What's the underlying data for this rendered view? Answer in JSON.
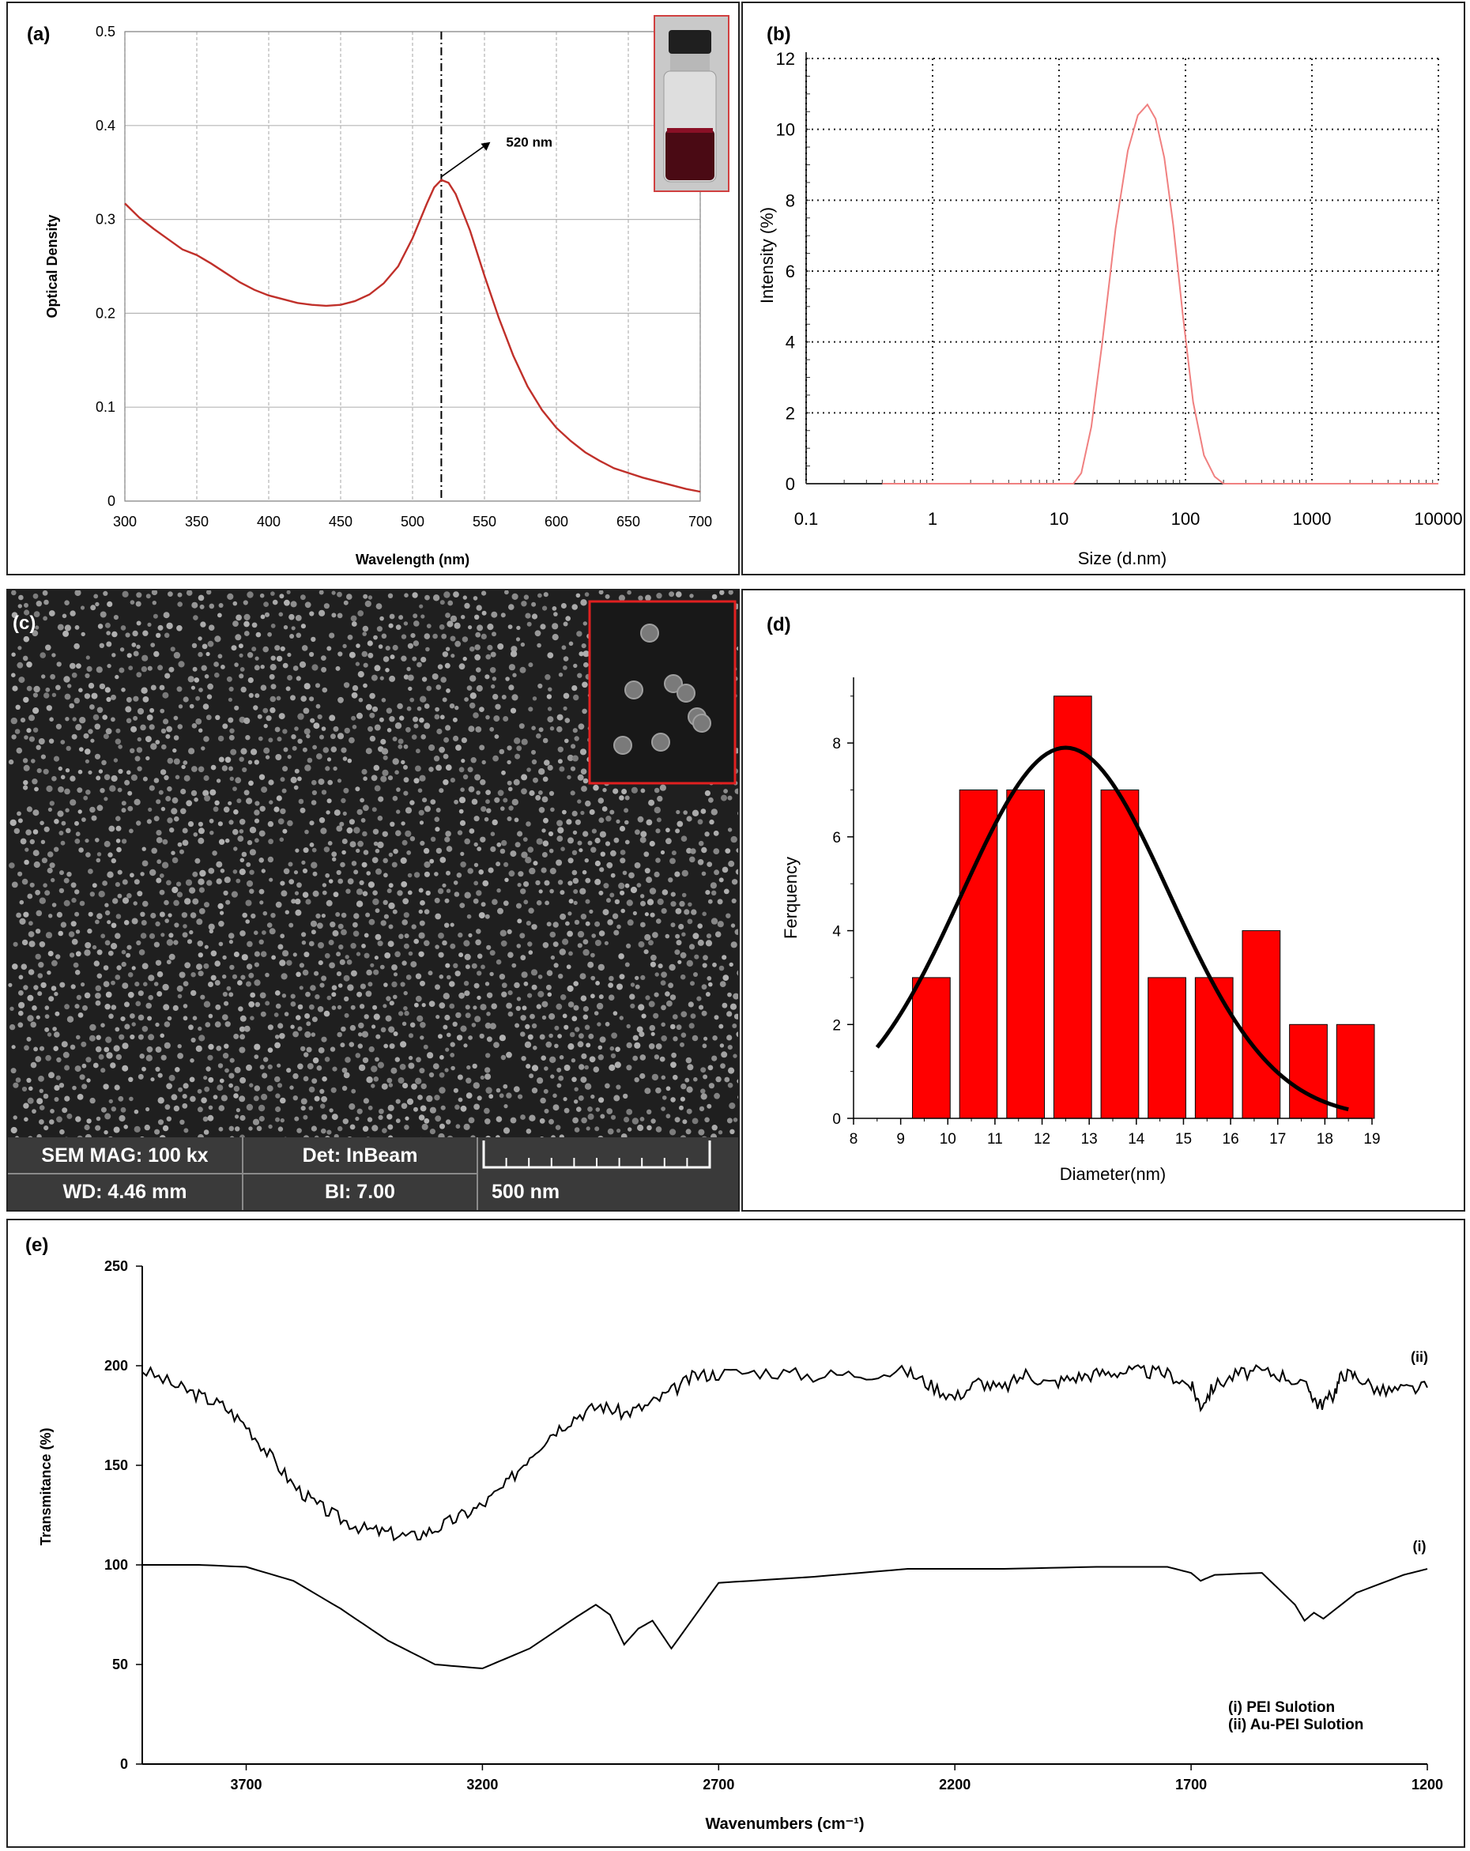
{
  "panels": {
    "a": {
      "label": "(a)",
      "chart_data": {
        "type": "line",
        "xlabel": "Wavelength (nm)",
        "ylabel": "Optical Density",
        "xlim": [
          300,
          700
        ],
        "ylim": [
          0,
          0.5
        ],
        "xticks": [
          300,
          350,
          400,
          450,
          500,
          550,
          600,
          650,
          700
        ],
        "yticks": [
          0,
          0.1,
          0.2,
          0.3,
          0.4,
          0.5
        ],
        "ytick_labels": [
          "0",
          "0.1",
          "0.2",
          "0.3",
          "0.4",
          "0.5"
        ],
        "grid": true,
        "series": [
          {
            "color": "#c0302a",
            "x": [
              300,
              310,
              320,
              330,
              340,
              350,
              360,
              370,
              380,
              390,
              400,
              410,
              420,
              430,
              440,
              450,
              460,
              470,
              480,
              490,
              500,
              510,
              515,
              520,
              525,
              530,
              540,
              550,
              560,
              570,
              580,
              590,
              600,
              610,
              620,
              630,
              640,
              650,
              660,
              670,
              680,
              690,
              700
            ],
            "y": [
              0.317,
              0.302,
              0.29,
              0.279,
              0.268,
              0.262,
              0.253,
              0.243,
              0.233,
              0.225,
              0.219,
              0.215,
              0.211,
              0.209,
              0.208,
              0.209,
              0.213,
              0.22,
              0.232,
              0.25,
              0.28,
              0.317,
              0.334,
              0.342,
              0.339,
              0.327,
              0.288,
              0.24,
              0.195,
              0.155,
              0.122,
              0.097,
              0.078,
              0.064,
              0.052,
              0.043,
              0.035,
              0.03,
              0.025,
              0.021,
              0.017,
              0.013,
              0.01
            ]
          }
        ],
        "marker_x": 520,
        "annotation": "520 nm",
        "inset": "vial-photo"
      }
    },
    "b": {
      "label": "(b)",
      "chart_data": {
        "type": "line",
        "xscale": "log",
        "xlabel": "Size (d.nm)",
        "ylabel": "Intensity  (%)",
        "xlim": [
          0.1,
          10000
        ],
        "ylim": [
          0,
          12
        ],
        "xticks": [
          0.1,
          1,
          10,
          100,
          1000,
          10000
        ],
        "xtick_labels": [
          "0.1",
          "1",
          "10",
          "100",
          "1000",
          "10000"
        ],
        "yticks": [
          0,
          2,
          4,
          6,
          8,
          10,
          12
        ],
        "ytick_labels": [
          "0",
          "2",
          "4",
          "6",
          "8",
          "10",
          "12"
        ],
        "grid": true,
        "series": [
          {
            "color": "#f08080",
            "x": [
              0.4,
              13,
              15,
              18,
              22,
              28,
              35,
              42,
              50,
              58,
              68,
              80,
              95,
              115,
              140,
              170,
              200,
              10000
            ],
            "y": [
              0,
              0,
              0.3,
              1.6,
              4.0,
              7.2,
              9.4,
              10.4,
              10.7,
              10.3,
              9.2,
              7.3,
              4.8,
              2.3,
              0.8,
              0.2,
              0,
              0
            ]
          }
        ]
      }
    },
    "c": {
      "label": "(c)",
      "sem": {
        "mag": "SEM MAG: 100 kx",
        "det": "Det: InBeam",
        "wd": "WD: 4.46 mm",
        "bi": "BI: 7.00",
        "scale": "500 nm"
      }
    },
    "d": {
      "label": "(d)",
      "chart_data": {
        "type": "bar",
        "xlabel": "Diameter(nm)",
        "ylabel": "Ferquency",
        "xlim": [
          8,
          19
        ],
        "ylim": [
          0,
          9.4
        ],
        "xticks": [
          8,
          9,
          10,
          11,
          12,
          13,
          14,
          15,
          16,
          17,
          18,
          19
        ],
        "yticks": [
          0,
          2,
          4,
          6,
          8
        ],
        "bar_width": 0.8,
        "bar_color": "#ff0000",
        "bins": [
          {
            "center": 9.65,
            "value": 3
          },
          {
            "center": 10.65,
            "value": 7
          },
          {
            "center": 11.65,
            "value": 7
          },
          {
            "center": 12.65,
            "value": 9
          },
          {
            "center": 13.65,
            "value": 7
          },
          {
            "center": 14.65,
            "value": 3
          },
          {
            "center": 15.65,
            "value": 3
          },
          {
            "center": 16.65,
            "value": 4
          },
          {
            "center": 17.65,
            "value": 2
          },
          {
            "center": 18.65,
            "value": 2
          }
        ],
        "fit": {
          "type": "gaussian",
          "mean": 12.5,
          "sigma": 2.2,
          "amplitude": 7.9,
          "x_range": [
            8.5,
            18.5
          ]
        }
      }
    },
    "e": {
      "label": "(e)",
      "chart_data": {
        "type": "line",
        "xlabel": "Wavenumbers (cm⁻¹)",
        "ylabel": "Transmitance (%)",
        "xlim": [
          3920,
          1200
        ],
        "ylim": [
          0,
          250
        ],
        "xticks": [
          3700,
          3200,
          2700,
          2200,
          1700,
          1200
        ],
        "yticks": [
          0,
          50,
          100,
          150,
          200,
          250
        ],
        "legend": [
          "(i) PEI Sulotion",
          "(ii) Au-PEI Sulotion"
        ],
        "series": [
          {
            "name": "(i)",
            "x": [
              3920,
              3800,
              3700,
              3600,
              3500,
              3400,
              3300,
              3200,
              3100,
              3000,
              2960,
              2930,
              2900,
              2870,
              2840,
              2800,
              2700,
              2500,
              2300,
              2100,
              1900,
              1750,
              1700,
              1680,
              1650,
              1550,
              1480,
              1460,
              1440,
              1420,
              1350,
              1250,
              1200
            ],
            "y": [
              100,
              100,
              99,
              92,
              78,
              62,
              50,
              48,
              58,
              74,
              80,
              75,
              60,
              68,
              72,
              58,
              91,
              94,
              98,
              98,
              99,
              99,
              96,
              92,
              95,
              96,
              80,
              72,
              76,
              73,
              86,
              95,
              98
            ]
          },
          {
            "name": "(ii)",
            "x": [
              3920,
              3850,
              3800,
              3750,
              3700,
              3650,
              3600,
              3550,
              3500,
              3450,
              3400,
              3350,
              3300,
              3250,
              3200,
              3150,
              3100,
              3050,
              3000,
              2950,
              2900,
              2850,
              2800,
              2750,
              2700,
              2600,
              2500,
              2400,
              2300,
              2250,
              2200,
              2150,
              2100,
              2050,
              2000,
              1950,
              1900,
              1850,
              1800,
              1750,
              1700,
              1680,
              1650,
              1600,
              1550,
              1500,
              1450,
              1430,
              1400,
              1380,
              1350,
              1300,
              1250,
              1200
            ],
            "y": [
              198,
              190,
              185,
              180,
              170,
              155,
              140,
              130,
              123,
              118,
              116,
              114,
              118,
              124,
              130,
              140,
              155,
              167,
              175,
              180,
              176,
              180,
              187,
              195,
              196,
              197,
              195,
              196,
              197,
              190,
              184,
              192,
              188,
              196,
              191,
              194,
              196,
              197,
              197,
              196,
              190,
              180,
              190,
              196,
              197,
              195,
              188,
              180,
              185,
              196,
              195,
              187,
              188,
              189
            ]
          }
        ],
        "series_labels": [
          "(i)",
          "(ii)"
        ]
      }
    }
  }
}
